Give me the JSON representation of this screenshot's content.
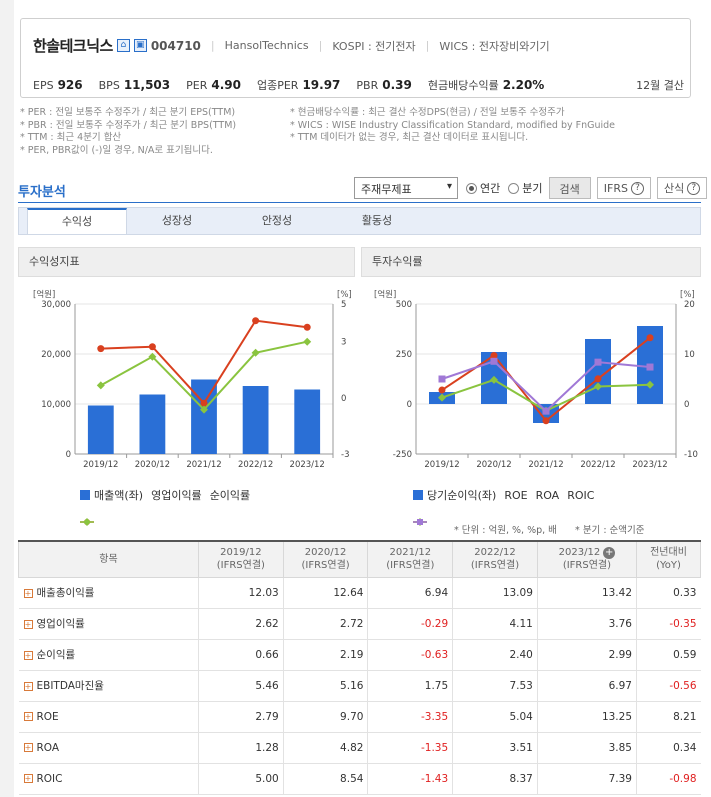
{
  "header": {
    "company": "한솔테크닉스",
    "code": "004710",
    "english_name": "HansolTechnics",
    "kospi": "KOSPI : 전기전자",
    "wics": "WICS : 전자장비와기기",
    "metrics": [
      {
        "label": "EPS",
        "value": "926"
      },
      {
        "label": "BPS",
        "value": "11,503"
      },
      {
        "label": "PER",
        "value": "4.90"
      },
      {
        "label": "업종PER",
        "value": "19.97"
      },
      {
        "label": "PBR",
        "value": "0.39"
      },
      {
        "label": "현금배당수익률",
        "value": "2.20%"
      }
    ],
    "settlement": "12월 결산"
  },
  "notes": [
    "* PER : 전일 보통주 수정주가 / 최근 분기 EPS(TTM)",
    "* 현금배당수익률 : 최근 결산 수정DPS(현금) / 전일 보통주 수정주가",
    "* PBR : 전일 보통주 수정주가 / 최근 분기 BPS(TTM)",
    "* WICS : WISE Industry Classification Standard, modified by FnGuide",
    "* TTM : 최근 4분기 합산",
    "* TTM 데이터가 없는 경우, 최근 결산 데이터로 표시됩니다.",
    "* PER, PBR값이 (-)일 경우, N/A로 표기됩니다.",
    ""
  ],
  "section": {
    "title": "투자분석",
    "select_value": "주재무제표",
    "radio_annual": "연간",
    "radio_quarter": "분기",
    "search_button": "검색",
    "ifrs_button": "IFRS",
    "formula_button": "산식"
  },
  "tabs": [
    "수익성",
    "성장성",
    "안정성",
    "활동성"
  ],
  "panels": {
    "left_title": "수익성지표",
    "right_title": "투자수익률"
  },
  "colors": {
    "bar": "#2a6fd6",
    "red": "#d9401f",
    "green": "#8ac43f",
    "purple": "#a078d6"
  },
  "chart_data": [
    {
      "type": "bar",
      "categories": [
        "2019/12",
        "2020/12",
        "2021/12",
        "2022/12",
        "2023/12"
      ],
      "ylabel_left": "[억원]",
      "ylabel_right": "[%]",
      "ylim_left": [
        0,
        30000
      ],
      "ylim_right": [
        -3,
        5
      ],
      "yticks_left": [
        "30,000",
        "20,000",
        "10,000",
        "0"
      ],
      "yticks_right": [
        "5",
        "3",
        "0",
        "-3"
      ],
      "series": [
        {
          "name": "매출액(좌)",
          "kind": "bar",
          "values": [
            9700,
            11900,
            14900,
            13600,
            12900
          ]
        },
        {
          "name": "영업이익률",
          "kind": "line",
          "values": [
            2.62,
            2.72,
            -0.29,
            4.11,
            3.76
          ]
        },
        {
          "name": "순이익률",
          "kind": "line",
          "values": [
            0.66,
            2.19,
            -0.63,
            2.4,
            2.99
          ]
        }
      ]
    },
    {
      "type": "bar",
      "categories": [
        "2019/12",
        "2020/12",
        "2021/12",
        "2022/12",
        "2023/12"
      ],
      "ylabel_left": "[억원]",
      "ylabel_right": "[%]",
      "ylim_left": [
        -250,
        500
      ],
      "ylim_right": [
        -10,
        20
      ],
      "yticks_left": [
        "500",
        "250",
        "0",
        "-250"
      ],
      "yticks_right": [
        "20",
        "10",
        "0",
        "-10"
      ],
      "series": [
        {
          "name": "당기순이익(좌)",
          "kind": "bar",
          "values": [
            60,
            260,
            -95,
            325,
            390
          ]
        },
        {
          "name": "ROE",
          "kind": "line",
          "values": [
            2.79,
            9.7,
            -3.35,
            5.04,
            13.25
          ]
        },
        {
          "name": "ROA",
          "kind": "line",
          "values": [
            1.28,
            4.82,
            -1.35,
            3.51,
            3.85
          ]
        },
        {
          "name": "ROIC",
          "kind": "line",
          "values": [
            5.0,
            8.54,
            -1.43,
            8.37,
            7.39
          ]
        }
      ]
    }
  ],
  "table": {
    "unit_note": "* 단위 : 억원, %, %p, 배",
    "basis_note": "* 분기 : 순액기준",
    "item_header": "항목",
    "columns": [
      {
        "year": "2019/12",
        "basis": "(IFRS연결)"
      },
      {
        "year": "2020/12",
        "basis": "(IFRS연결)"
      },
      {
        "year": "2021/12",
        "basis": "(IFRS연결)"
      },
      {
        "year": "2022/12",
        "basis": "(IFRS연결)"
      },
      {
        "year": "2023/12",
        "basis": "(IFRS연결)"
      },
      {
        "year": "전년대비",
        "basis": "(YoY)"
      }
    ],
    "rows": [
      {
        "item": "매출총이익률",
        "values": [
          "12.03",
          "12.64",
          "6.94",
          "13.09",
          "13.42",
          "0.33"
        ]
      },
      {
        "item": "영업이익률",
        "values": [
          "2.62",
          "2.72",
          "-0.29",
          "4.11",
          "3.76",
          "-0.35"
        ]
      },
      {
        "item": "순이익률",
        "values": [
          "0.66",
          "2.19",
          "-0.63",
          "2.40",
          "2.99",
          "0.59"
        ]
      },
      {
        "item": "EBITDA마진율",
        "values": [
          "5.46",
          "5.16",
          "1.75",
          "7.53",
          "6.97",
          "-0.56"
        ]
      },
      {
        "item": "ROE",
        "values": [
          "2.79",
          "9.70",
          "-3.35",
          "5.04",
          "13.25",
          "8.21"
        ]
      },
      {
        "item": "ROA",
        "values": [
          "1.28",
          "4.82",
          "-1.35",
          "3.51",
          "3.85",
          "0.34"
        ]
      },
      {
        "item": "ROIC",
        "values": [
          "5.00",
          "8.54",
          "-1.43",
          "8.37",
          "7.39",
          "-0.98"
        ]
      }
    ]
  }
}
